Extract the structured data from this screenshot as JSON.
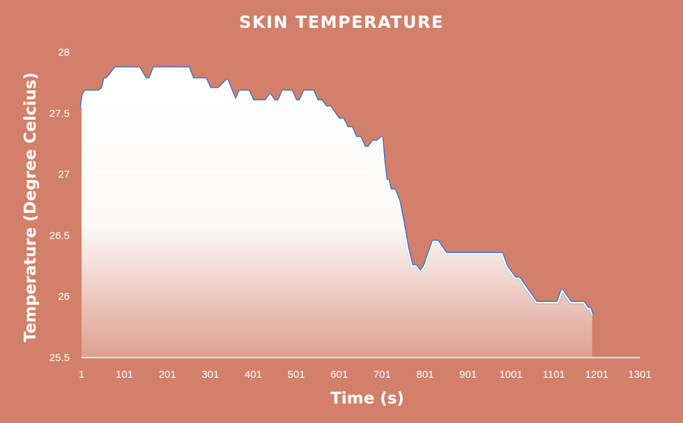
{
  "chart_data": {
    "type": "area",
    "title": "SKIN TEMPERATURE",
    "xlabel": "Time (s)",
    "ylabel": "Temperature (Degree Celcius)",
    "x_ticks": [
      "1",
      "101",
      "201",
      "301",
      "401",
      "501",
      "601",
      "701",
      "801",
      "901",
      "1001",
      "1101",
      "1201",
      "1301"
    ],
    "y_ticks": [
      "25.5",
      "26",
      "26.5",
      "27",
      "27.5",
      "28"
    ],
    "xlim": [
      1,
      1301
    ],
    "ylim": [
      25.5,
      28
    ],
    "grid": false,
    "legend": "none",
    "colors": {
      "background": "#D2806A",
      "area_fill": "#FFFFFF",
      "line": "#4472C4",
      "text": "#FFFFFF"
    },
    "x": [
      1,
      5,
      10,
      20,
      40,
      50,
      55,
      60,
      80,
      120,
      135,
      150,
      160,
      170,
      190,
      230,
      250,
      260,
      280,
      290,
      300,
      310,
      320,
      340,
      350,
      360,
      370,
      380,
      390,
      400,
      410,
      420,
      430,
      440,
      450,
      460,
      470,
      480,
      490,
      500,
      510,
      520,
      530,
      540,
      550,
      560,
      570,
      580,
      590,
      600,
      610,
      620,
      630,
      640,
      650,
      660,
      670,
      680,
      690,
      700,
      705,
      710,
      715,
      720,
      730,
      740,
      750,
      760,
      770,
      780,
      790,
      800,
      810,
      820,
      830,
      850,
      860,
      870,
      880,
      900,
      920,
      940,
      960,
      980,
      990,
      1000,
      1010,
      1020,
      1040,
      1060,
      1080,
      1090,
      1100,
      1110,
      1120,
      1140,
      1160,
      1170,
      1180,
      1185,
      1190
    ],
    "values": [
      27.55,
      27.65,
      27.68,
      27.68,
      27.68,
      27.7,
      27.78,
      27.78,
      27.87,
      27.87,
      27.87,
      27.78,
      27.78,
      27.87,
      27.87,
      27.87,
      27.87,
      27.78,
      27.78,
      27.78,
      27.7,
      27.7,
      27.7,
      27.77,
      27.68,
      27.6,
      27.68,
      27.68,
      27.68,
      27.6,
      27.6,
      27.6,
      27.6,
      27.65,
      27.6,
      27.6,
      27.68,
      27.68,
      27.68,
      27.6,
      27.6,
      27.68,
      27.68,
      27.68,
      27.6,
      27.6,
      27.55,
      27.55,
      27.5,
      27.45,
      27.45,
      27.38,
      27.38,
      27.3,
      27.3,
      27.22,
      27.22,
      27.27,
      27.27,
      27.3,
      27.1,
      26.95,
      26.95,
      26.87,
      26.87,
      26.78,
      26.6,
      26.4,
      26.25,
      26.25,
      26.2,
      26.25,
      26.35,
      26.45,
      26.45,
      26.35,
      26.35,
      26.35,
      26.35,
      26.35,
      26.35,
      26.35,
      26.35,
      26.35,
      26.25,
      26.2,
      26.15,
      26.15,
      26.05,
      25.95,
      25.95,
      25.95,
      25.95,
      25.95,
      26.05,
      25.95,
      25.95,
      25.95,
      25.9,
      25.9,
      25.85
    ]
  }
}
